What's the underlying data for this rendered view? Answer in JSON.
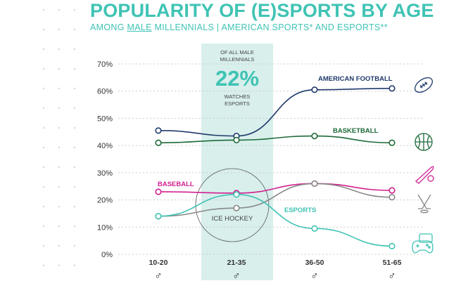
{
  "header": {
    "title": "POPULARITY OF (E)SPORTS BY AGE",
    "subtitle_pre": "AMONG ",
    "subtitle_em": "MALE",
    "subtitle_post": " MILLENNIALS | AMERICAN SPORTS* AND ESPORTS**"
  },
  "highlight": {
    "line1": "OF ALL MALE",
    "line2": "MILLENNIALS",
    "value": "22%",
    "line3": "WATCHES",
    "line4": "ESPORTS"
  },
  "circle_label": "ICE HOCKEY",
  "gender_symbol": "♂",
  "colors": {
    "accent": "#3fc3b4",
    "highlight_band": "#d8efec",
    "axis_text": "#333333",
    "grid": "#cccccc"
  },
  "chart_data": {
    "type": "line",
    "categories": [
      "10-20",
      "21-35",
      "36-50",
      "51-65"
    ],
    "ylim": [
      0,
      70
    ],
    "yticks": [
      0,
      10,
      20,
      30,
      40,
      50,
      60,
      70
    ],
    "ytick_labels": [
      "0%",
      "10%",
      "20%",
      "30%",
      "40%",
      "50%",
      "60%",
      "70%"
    ],
    "series": [
      {
        "name": "AMERICAN FOOTBALL",
        "values": [
          45.5,
          43.5,
          60.5,
          61
        ],
        "color": "#1f3a6b",
        "icon": "football-icon"
      },
      {
        "name": "BASKETBALL",
        "values": [
          41,
          42,
          43.5,
          41
        ],
        "color": "#1e6a3a",
        "icon": "basketball-icon"
      },
      {
        "name": "BASEBALL",
        "values": [
          23,
          22.5,
          26,
          23.5
        ],
        "color": "#d0208f",
        "icon": "baseball-icon"
      },
      {
        "name": "ICE HOCKEY",
        "values": [
          14,
          17,
          26,
          21
        ],
        "color": "#888888",
        "icon": "hockey-icon"
      },
      {
        "name": "ESPORTS",
        "values": [
          14,
          22,
          9.5,
          3
        ],
        "color": "#3fc3b4",
        "icon": "gamepad-icon"
      }
    ]
  }
}
